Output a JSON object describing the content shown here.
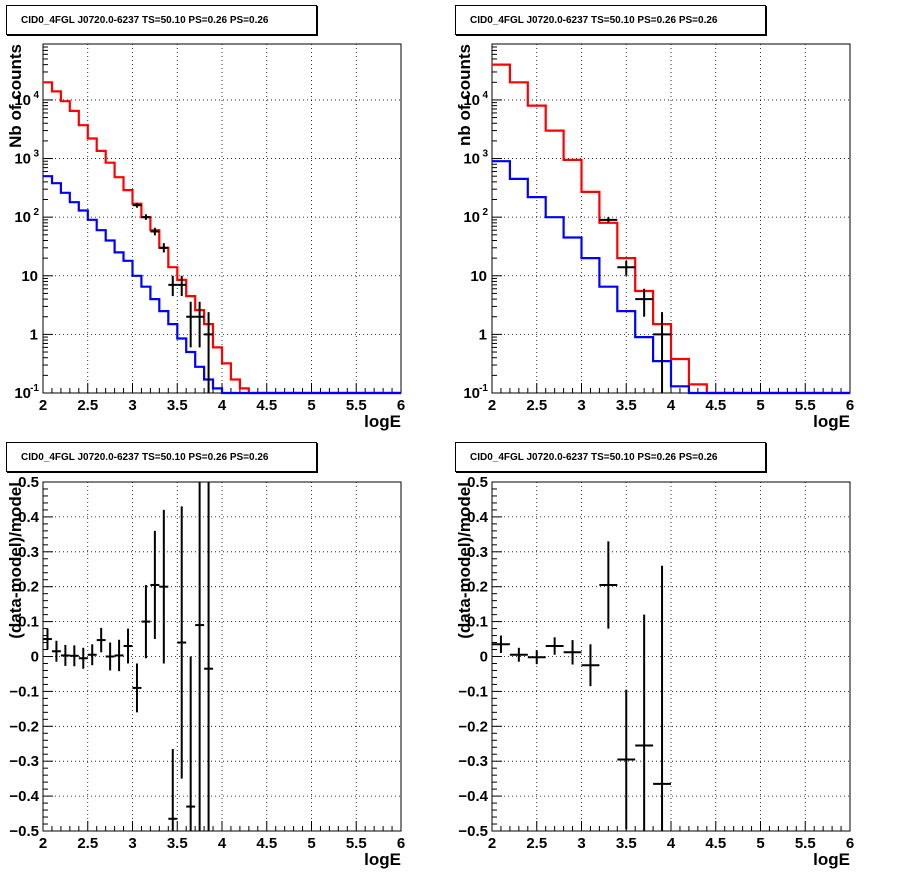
{
  "chart_data": [
    {
      "panel": "top-left",
      "type": "histogram",
      "title": "CID0_4FGL J0720.0-6237 TS=50.10 PS=0.26 PS=0.26",
      "xlabel": "logE",
      "ylabel": "Nb of counts",
      "xlim": [
        2,
        6
      ],
      "ylim": [
        0.1,
        90000
      ],
      "yscale": "log",
      "grid": true,
      "xticks": [
        "2",
        "2.5",
        "3",
        "3.5",
        "4",
        "4.5",
        "5",
        "5.5",
        "6"
      ],
      "yticks": [
        "10^-1",
        "1",
        "10",
        "10^2",
        "10^3",
        "10^4"
      ],
      "series": [
        {
          "color": "#ff0000",
          "style": "step",
          "bin_edges": [
            2.0,
            2.1,
            2.2,
            2.3,
            2.4,
            2.5,
            2.6,
            2.7,
            2.8,
            2.9,
            3.0,
            3.1,
            3.2,
            3.3,
            3.4,
            3.5,
            3.6,
            3.7,
            3.8,
            3.9,
            4.0,
            4.1,
            4.2,
            4.3,
            4.4,
            4.5,
            6.0
          ],
          "values": [
            20000,
            14000,
            9500,
            6500,
            3700,
            2200,
            1350,
            850,
            480,
            290,
            170,
            100,
            60,
            30,
            14,
            8.5,
            4.5,
            2.6,
            1.5,
            0.6,
            0.32,
            0.17,
            0.12,
            0.1,
            0.1,
            0.1
          ]
        },
        {
          "color": "#0000ff",
          "style": "step",
          "bin_edges": [
            2.0,
            2.1,
            2.2,
            2.3,
            2.4,
            2.5,
            2.6,
            2.7,
            2.8,
            2.9,
            3.0,
            3.1,
            3.2,
            3.3,
            3.4,
            3.5,
            3.6,
            3.7,
            3.8,
            3.9,
            4.0,
            6.0
          ],
          "values": [
            500,
            380,
            260,
            180,
            130,
            90,
            60,
            40,
            25,
            18,
            10,
            6.5,
            4,
            2.5,
            1.5,
            0.85,
            0.5,
            0.28,
            0.17,
            0.12,
            0.1
          ]
        },
        {
          "color": "#000000",
          "style": "errorbar",
          "points": [
            {
              "x": 3.05,
              "y": 160,
              "ylo": 145,
              "yhi": 175
            },
            {
              "x": 3.15,
              "y": 100,
              "ylo": 90,
              "yhi": 112
            },
            {
              "x": 3.25,
              "y": 57,
              "ylo": 49,
              "yhi": 66
            },
            {
              "x": 3.35,
              "y": 30,
              "ylo": 25,
              "yhi": 36
            },
            {
              "x": 3.45,
              "y": 7,
              "ylo": 4.5,
              "yhi": 10
            },
            {
              "x": 3.55,
              "y": 7,
              "ylo": 4.5,
              "yhi": 10
            },
            {
              "x": 3.65,
              "y": 2,
              "ylo": 0.6,
              "yhi": 3.6
            },
            {
              "x": 3.75,
              "y": 2,
              "ylo": 0.6,
              "yhi": 3.6
            },
            {
              "x": 3.85,
              "y": 1,
              "ylo": 0.1,
              "yhi": 2.4
            }
          ]
        }
      ]
    },
    {
      "panel": "top-right",
      "type": "histogram",
      "title": "CID0_4FGL J0720.0-6237 TS=50.10 PS=0.26 PS=0.26",
      "xlabel": "logE",
      "ylabel": "nb of counts",
      "xlim": [
        2,
        6
      ],
      "ylim": [
        0.1,
        90000
      ],
      "yscale": "log",
      "grid": true,
      "xticks": [
        "2",
        "2.5",
        "3",
        "3.5",
        "4",
        "4.5",
        "5",
        "5.5",
        "6"
      ],
      "yticks": [
        "10^-1",
        "1",
        "10",
        "10^2",
        "10^3",
        "10^4"
      ],
      "series": [
        {
          "color": "#ff0000",
          "style": "step",
          "bin_edges": [
            2.0,
            2.2,
            2.4,
            2.6,
            2.8,
            3.0,
            3.2,
            3.4,
            3.6,
            3.8,
            4.0,
            4.2,
            4.4,
            6.0
          ],
          "values": [
            40000,
            20000,
            8000,
            3000,
            950,
            270,
            80,
            20,
            5.5,
            1.5,
            0.38,
            0.14,
            0.1
          ]
        },
        {
          "color": "#0000ff",
          "style": "step",
          "bin_edges": [
            2.0,
            2.2,
            2.4,
            2.6,
            2.8,
            3.0,
            3.2,
            3.4,
            3.6,
            3.8,
            4.0,
            4.2,
            6.0
          ],
          "values": [
            900,
            450,
            220,
            100,
            45,
            20,
            6.5,
            2.5,
            0.9,
            0.35,
            0.13,
            0.1
          ]
        },
        {
          "color": "#000000",
          "style": "errorbar",
          "points": [
            {
              "x": 3.3,
              "y": 90,
              "ylo": 82,
              "yhi": 100
            },
            {
              "x": 3.5,
              "y": 14,
              "ylo": 10,
              "yhi": 18
            },
            {
              "x": 3.7,
              "y": 4,
              "ylo": 2,
              "yhi": 6
            },
            {
              "x": 3.9,
              "y": 1,
              "ylo": 0.1,
              "yhi": 2.4
            }
          ]
        }
      ]
    },
    {
      "panel": "bottom-left",
      "type": "scatter",
      "title": "CID0_4FGL J0720.0-6237 TS=50.10 PS=0.26 PS=0.26",
      "xlabel": "logE",
      "ylabel": "(data-model)/model",
      "xlim": [
        2,
        6
      ],
      "ylim": [
        -0.5,
        0.5
      ],
      "yscale": "linear",
      "grid": true,
      "xticks": [
        "2",
        "2.5",
        "3",
        "3.5",
        "4",
        "4.5",
        "5",
        "5.5",
        "6"
      ],
      "yticks": [
        "-0.5",
        "-0.4",
        "-0.3",
        "-0.2",
        "-0.1",
        "0",
        "0.1",
        "0.2",
        "0.3",
        "0.4",
        "0.5"
      ],
      "series": [
        {
          "color": "#000000",
          "style": "errorbar",
          "xhalf": 0.05,
          "points": [
            {
              "x": 2.05,
              "y": 0.05,
              "err": 0.03
            },
            {
              "x": 2.15,
              "y": 0.015,
              "err": 0.03
            },
            {
              "x": 2.25,
              "y": 0.003,
              "err": 0.03
            },
            {
              "x": 2.35,
              "y": 0.002,
              "err": 0.03
            },
            {
              "x": 2.45,
              "y": -0.005,
              "err": 0.03
            },
            {
              "x": 2.55,
              "y": 0.005,
              "err": 0.03
            },
            {
              "x": 2.65,
              "y": 0.047,
              "err": 0.035
            },
            {
              "x": 2.75,
              "y": 0.0,
              "err": 0.04
            },
            {
              "x": 2.85,
              "y": 0.003,
              "err": 0.045
            },
            {
              "x": 2.95,
              "y": 0.03,
              "err": 0.05
            },
            {
              "x": 3.05,
              "y": -0.09,
              "err": 0.07
            },
            {
              "x": 3.15,
              "y": 0.1,
              "err": 0.105
            },
            {
              "x": 3.25,
              "y": 0.205,
              "err": 0.155
            },
            {
              "x": 3.35,
              "y": 0.2,
              "err": 0.22
            },
            {
              "x": 3.45,
              "y": -0.465,
              "err": 0.2
            },
            {
              "x": 3.55,
              "y": 0.04,
              "err": 0.39
            },
            {
              "x": 3.65,
              "y": -0.43,
              "err": 0.43
            },
            {
              "x": 3.75,
              "y": 0.09,
              "err": 0.6
            },
            {
              "x": 3.85,
              "y": -0.035,
              "err": 0.9
            }
          ]
        }
      ]
    },
    {
      "panel": "bottom-right",
      "type": "scatter",
      "title": "CID0_4FGL J0720.0-6237 TS=50.10 PS=0.26 PS=0.26",
      "xlabel": "logE",
      "ylabel": "(data-model)/model",
      "xlim": [
        2,
        6
      ],
      "ylim": [
        -0.5,
        0.5
      ],
      "yscale": "linear",
      "grid": true,
      "xticks": [
        "2",
        "2.5",
        "3",
        "3.5",
        "4",
        "4.5",
        "5",
        "5.5",
        "6"
      ],
      "yticks": [
        "-0.5",
        "-0.4",
        "-0.3",
        "-0.2",
        "-0.1",
        "0",
        "0.1",
        "0.2",
        "0.3",
        "0.4",
        "0.5"
      ],
      "series": [
        {
          "color": "#000000",
          "style": "errorbar",
          "xhalf": 0.1,
          "points": [
            {
              "x": 2.1,
              "y": 0.035,
              "err": 0.025
            },
            {
              "x": 2.3,
              "y": 0.005,
              "err": 0.02
            },
            {
              "x": 2.5,
              "y": -0.002,
              "err": 0.02
            },
            {
              "x": 2.7,
              "y": 0.03,
              "err": 0.025
            },
            {
              "x": 2.9,
              "y": 0.012,
              "err": 0.035
            },
            {
              "x": 3.1,
              "y": -0.025,
              "err": 0.06
            },
            {
              "x": 3.3,
              "y": 0.205,
              "err": 0.125
            },
            {
              "x": 3.5,
              "y": -0.295,
              "err": 0.2
            },
            {
              "x": 3.7,
              "y": -0.255,
              "err": 0.375
            },
            {
              "x": 3.9,
              "y": -0.365,
              "err": 0.625
            }
          ]
        }
      ]
    }
  ]
}
